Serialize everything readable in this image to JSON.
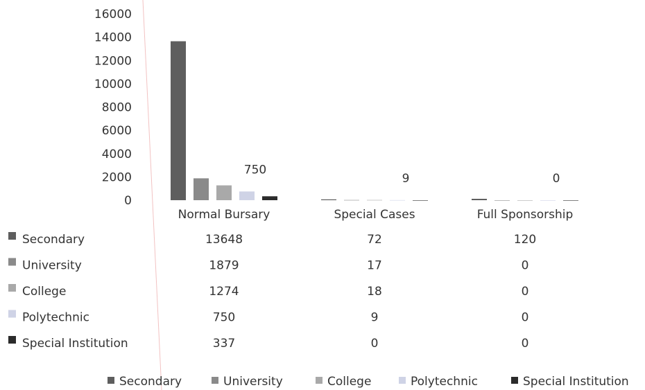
{
  "chart_data": {
    "type": "bar",
    "title": "",
    "xlabel": "",
    "ylabel": "",
    "ylim": [
      0,
      16000
    ],
    "yticks": [
      0,
      2000,
      4000,
      6000,
      8000,
      10000,
      12000,
      14000,
      16000
    ],
    "grid": false,
    "legend_position": "bottom",
    "data_table": true,
    "categories": [
      "Normal Bursary",
      "Special Cases",
      "Full Sponsorship"
    ],
    "series": [
      {
        "name": "Secondary",
        "values": [
          13648,
          72,
          120
        ],
        "color": "#5e5e5e"
      },
      {
        "name": "University",
        "values": [
          1879,
          17,
          0
        ],
        "color": "#8a8a8a"
      },
      {
        "name": "College",
        "values": [
          1274,
          18,
          0
        ],
        "color": "#a9a9a9"
      },
      {
        "name": "Polytechnic",
        "values": [
          750,
          9,
          0
        ],
        "color": "#cfd3e6"
      },
      {
        "name": "Special Institution",
        "values": [
          337,
          0,
          0
        ],
        "color": "#2b2b2b"
      }
    ],
    "data_labels": [
      {
        "series": "Polytechnic",
        "category": "Normal Bursary",
        "text": "750"
      },
      {
        "series": "Polytechnic",
        "category": "Special Cases",
        "text": "9"
      },
      {
        "series": "Polytechnic",
        "category": "Full Sponsorship",
        "text": "0"
      }
    ]
  }
}
